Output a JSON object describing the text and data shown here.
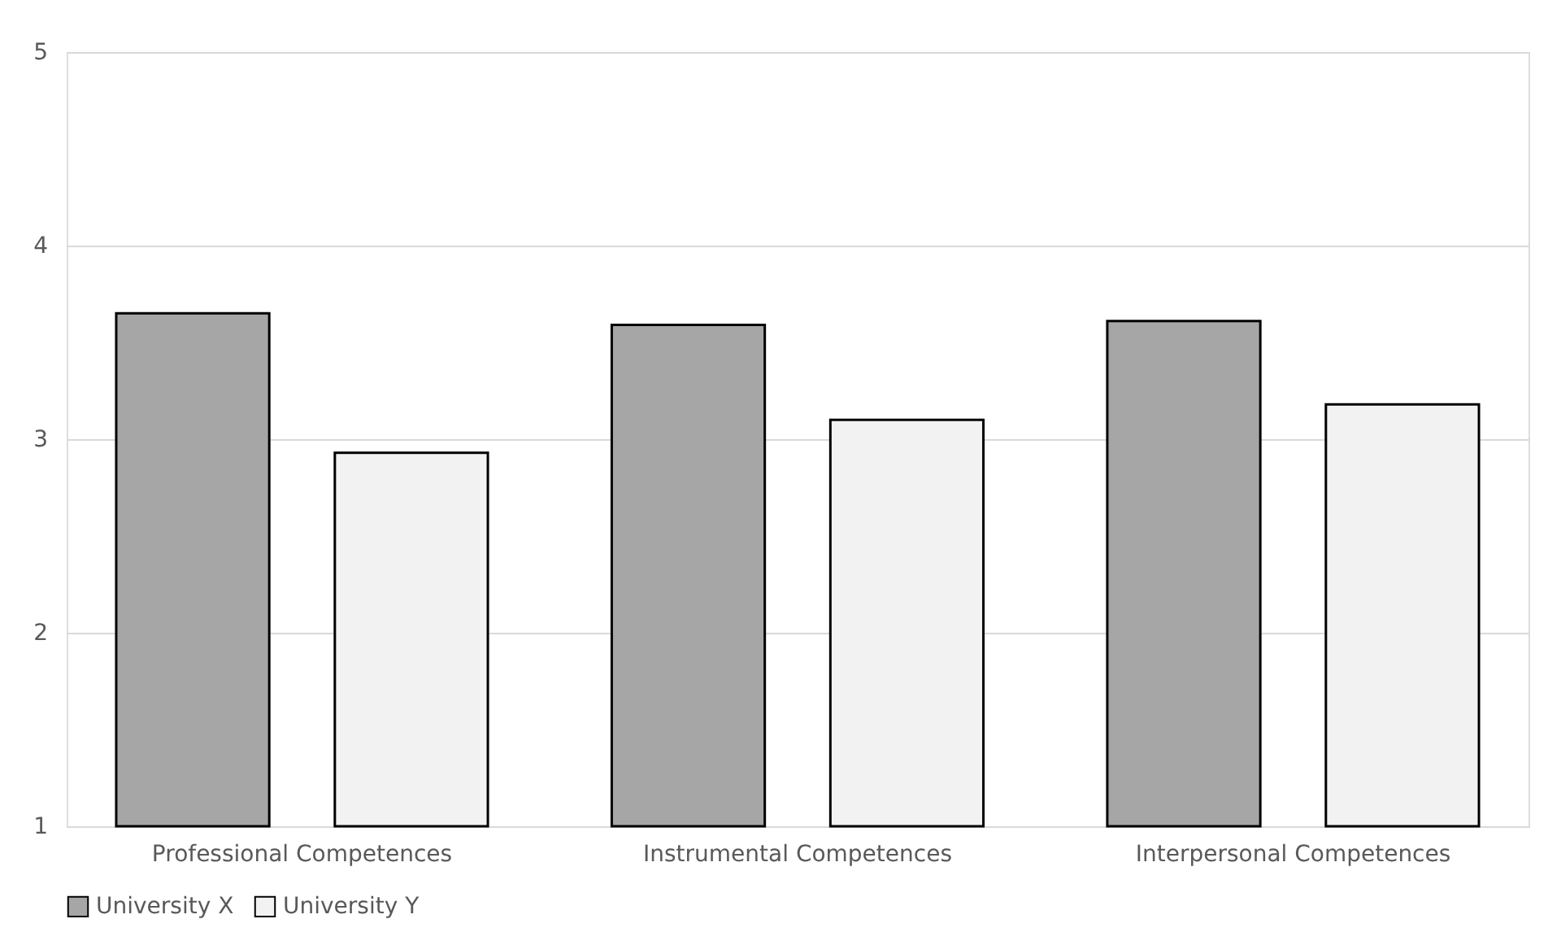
{
  "chart_data": {
    "type": "bar",
    "categories": [
      "Professional Competences",
      "Instrumental Competences",
      "Interpersonal Competences"
    ],
    "series": [
      {
        "name": "University X",
        "color": "#a6a6a6",
        "values": [
          3.65,
          3.59,
          3.61
        ]
      },
      {
        "name": "University Y",
        "color": "#f2f2f2",
        "values": [
          2.93,
          3.1,
          3.18
        ]
      }
    ],
    "ylim": [
      1,
      5
    ],
    "yticks": [
      1,
      2,
      3,
      4,
      5
    ],
    "grid": "y",
    "legend": "bottom"
  }
}
